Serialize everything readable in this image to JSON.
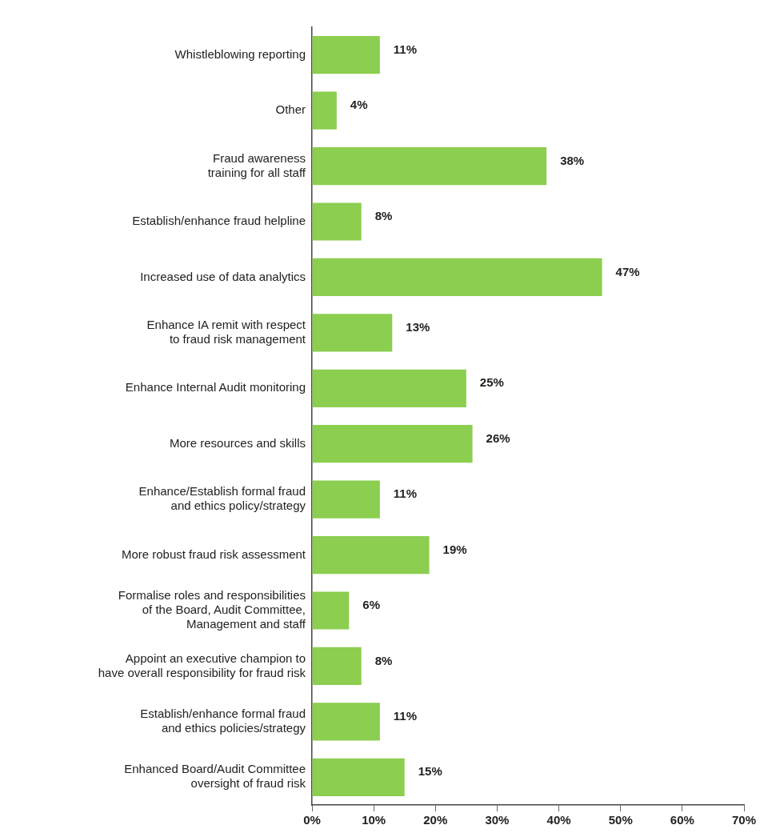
{
  "chart_data": {
    "type": "bar",
    "orientation": "horizontal",
    "categories": [
      "Whistleblowing reporting",
      "Other",
      "Fraud awareness\ntraining for all staff",
      "Establish/enhance fraud helpline",
      "Increased use of data analytics",
      "Enhance IA remit with respect\nto fraud risk management",
      "Enhance Internal Audit monitoring",
      "More resources and skills",
      "Enhance/Establish formal fraud\nand ethics policy/strategy",
      "More robust fraud risk assessment",
      "Formalise roles and responsibilities\nof the Board, Audit Committee,\nManagement and staff",
      "Appoint an executive champion to\nhave overall responsibility for fraud risk",
      "Establish/enhance formal fraud\nand ethics policies/strategy",
      "Enhanced Board/Audit Committee\noversight of fraud risk"
    ],
    "values": [
      11,
      4,
      38,
      8,
      47,
      13,
      25,
      26,
      11,
      19,
      6,
      8,
      11,
      15
    ],
    "value_labels": [
      "11%",
      "4%",
      "38%",
      "8%",
      "47%",
      "13%",
      "25%",
      "26%",
      "11%",
      "19%",
      "6%",
      "8%",
      "11%",
      "15%"
    ],
    "color": "#8cce50",
    "xlim": [
      0,
      70
    ],
    "xticks": [
      {
        "value": 0,
        "label": "0%"
      },
      {
        "value": 10,
        "label": "10%"
      },
      {
        "value": 20,
        "label": "20%"
      },
      {
        "value": 30,
        "label": "30%"
      },
      {
        "value": 40,
        "label": "40%"
      },
      {
        "value": 50,
        "label": "50%"
      },
      {
        "value": 60,
        "label": "60%"
      },
      {
        "value": 70,
        "label": "70%"
      }
    ],
    "grid": false,
    "legend": false
  }
}
